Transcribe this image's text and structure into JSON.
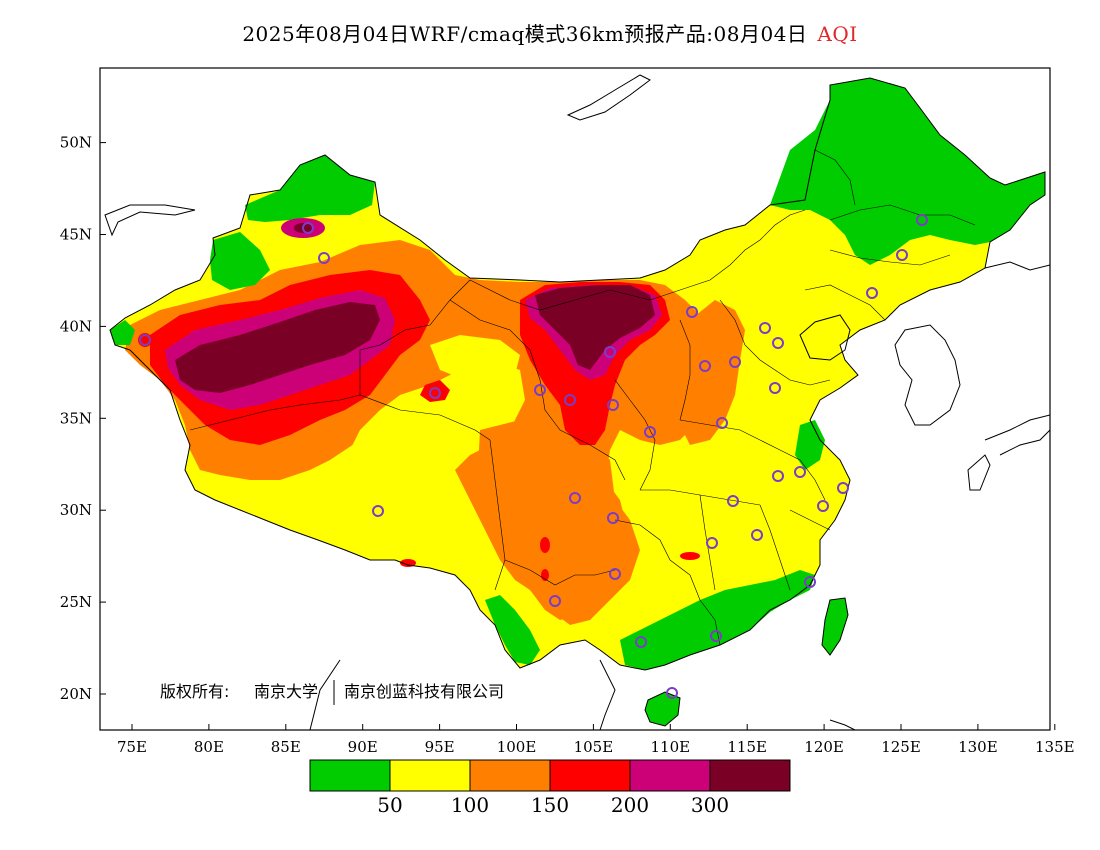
{
  "title": {
    "text": "2025年08月04日WRF/cmaq模式36km预报产品:08月04日",
    "product": "AQI",
    "product_color": "#e0282b"
  },
  "axes": {
    "lon_ticks": [
      "75E",
      "80E",
      "85E",
      "90E",
      "95E",
      "100E",
      "105E",
      "110E",
      "115E",
      "120E",
      "125E",
      "130E",
      "135E"
    ],
    "lat_ticks": [
      "20N",
      "25N",
      "30N",
      "35N",
      "40N",
      "45N",
      "50N"
    ]
  },
  "copyright": {
    "owner_label": "版权所有:",
    "org1": "南京大学",
    "org2": "南京创蓝科技有限公司"
  },
  "legend": {
    "colors": [
      "#00cc00",
      "#ffff00",
      "#ff8000",
      "#ff0000",
      "#cc0077",
      "#7a0025"
    ],
    "thresholds": [
      "50",
      "100",
      "150",
      "200",
      "300"
    ]
  },
  "palette": {
    "good": "#00cc00",
    "moderate": "#ffff00",
    "usg": "#ff8000",
    "unhealthy": "#ff0000",
    "very_unhealthy": "#cc0077",
    "hazardous": "#7a0025",
    "station_marker": "#7b3cc8"
  }
}
